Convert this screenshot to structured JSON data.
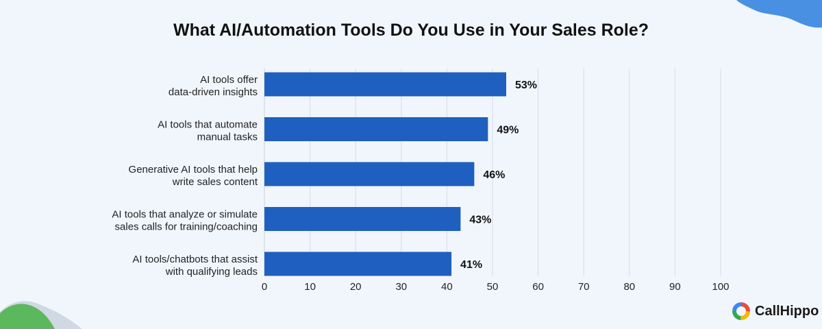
{
  "chart_data": {
    "type": "bar",
    "orientation": "horizontal",
    "title": "What AI/Automation Tools Do You Use in Your Sales Role?",
    "categories": [
      [
        "AI tools offer",
        "data-driven insights"
      ],
      [
        "AI tools that automate",
        "manual tasks"
      ],
      [
        "Generative AI tools that help",
        "write sales content"
      ],
      [
        "AI tools that analyze or simulate",
        "sales calls for training/coaching"
      ],
      [
        "AI tools/chatbots that assist",
        "with qualifying leads"
      ]
    ],
    "values": [
      53,
      49,
      46,
      43,
      41
    ],
    "value_labels": [
      "53%",
      "49%",
      "46%",
      "43%",
      "41%"
    ],
    "xlim": [
      0,
      100
    ],
    "xticks": [
      "0",
      "10",
      "20",
      "30",
      "40",
      "50",
      "60",
      "70",
      "80",
      "90",
      "100"
    ],
    "grid": "vertical",
    "bar_color": "#1f5fbf"
  },
  "brand": {
    "name": "CallHippo"
  },
  "colors": {
    "background": "#f1f6fd",
    "blob_blue": "#4a90e2",
    "blob_green": "#5cb85c"
  }
}
